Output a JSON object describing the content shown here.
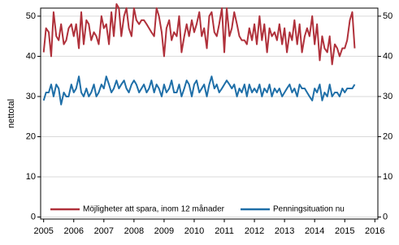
{
  "chart_data": {
    "type": "line",
    "y_label": "nettotal",
    "x": [
      2005.0,
      2005.08,
      2005.17,
      2005.25,
      2005.33,
      2005.42,
      2005.5,
      2005.58,
      2005.67,
      2005.75,
      2005.83,
      2005.92,
      2006.0,
      2006.08,
      2006.17,
      2006.25,
      2006.33,
      2006.42,
      2006.5,
      2006.58,
      2006.67,
      2006.75,
      2006.83,
      2006.92,
      2007.0,
      2007.08,
      2007.17,
      2007.25,
      2007.33,
      2007.42,
      2007.5,
      2007.58,
      2007.67,
      2007.75,
      2007.83,
      2007.92,
      2008.0,
      2008.08,
      2008.17,
      2008.25,
      2008.33,
      2008.42,
      2008.5,
      2008.58,
      2008.67,
      2008.75,
      2008.83,
      2008.92,
      2009.0,
      2009.08,
      2009.17,
      2009.25,
      2009.33,
      2009.42,
      2009.5,
      2009.58,
      2009.67,
      2009.75,
      2009.83,
      2009.92,
      2010.0,
      2010.08,
      2010.17,
      2010.25,
      2010.33,
      2010.42,
      2010.5,
      2010.58,
      2010.67,
      2010.75,
      2010.83,
      2010.92,
      2011.0,
      2011.08,
      2011.17,
      2011.25,
      2011.33,
      2011.42,
      2011.5,
      2011.58,
      2011.67,
      2011.75,
      2011.83,
      2011.92,
      2012.0,
      2012.08,
      2012.17,
      2012.25,
      2012.33,
      2012.42,
      2012.5,
      2012.58,
      2012.67,
      2012.75,
      2012.83,
      2012.92,
      2013.0,
      2013.08,
      2013.17,
      2013.25,
      2013.33,
      2013.42,
      2013.5,
      2013.58,
      2013.67,
      2013.75,
      2013.83,
      2013.92,
      2014.0,
      2014.08,
      2014.17,
      2014.25,
      2014.33,
      2014.42,
      2014.5,
      2014.58,
      2014.67,
      2014.75,
      2014.83,
      2014.92,
      2015.0,
      2015.08,
      2015.17,
      2015.25,
      2015.33
    ],
    "series": [
      {
        "name": "Möjligheter att spara, inom 12 månader",
        "color": "#b0313b",
        "values": [
          41,
          47,
          46,
          40,
          51,
          45,
          44,
          48,
          43,
          44,
          47,
          48,
          45,
          48,
          42,
          51,
          43,
          49,
          48,
          44,
          46,
          45,
          43,
          50,
          47,
          48,
          43,
          51,
          45,
          53,
          52,
          45,
          50,
          52,
          47,
          45,
          52,
          49,
          48,
          49,
          49,
          48,
          47,
          46,
          45,
          52,
          50,
          46,
          40,
          47,
          49,
          44,
          46,
          45,
          50,
          41,
          45,
          48,
          45,
          49,
          46,
          48,
          51,
          45,
          47,
          42,
          50,
          51,
          46,
          45,
          48,
          52,
          41,
          52,
          45,
          47,
          51,
          48,
          45,
          44,
          44,
          43,
          47,
          44,
          48,
          43,
          50,
          44,
          48,
          41,
          47,
          45,
          46,
          44,
          48,
          43,
          47,
          41,
          46,
          44,
          49,
          43,
          48,
          41,
          45,
          47,
          45,
          50,
          43,
          48,
          39,
          45,
          42,
          41,
          45,
          38,
          43,
          42,
          40,
          42,
          42,
          44,
          49,
          51,
          42
        ]
      },
      {
        "name": "Penningsituation nu",
        "color": "#1f6fa8",
        "values": [
          29,
          31,
          31,
          33,
          30,
          33,
          32,
          28,
          31,
          30,
          30,
          33,
          31,
          32,
          35,
          31,
          30,
          32,
          30,
          31,
          33,
          30,
          31,
          33,
          32,
          35,
          33,
          31,
          32,
          34,
          32,
          33,
          34,
          32,
          31,
          33,
          34,
          33,
          31,
          32,
          33,
          31,
          32,
          34,
          31,
          33,
          32,
          30,
          33,
          31,
          32,
          34,
          31,
          31,
          33,
          30,
          32,
          34,
          33,
          30,
          33,
          34,
          31,
          32,
          33,
          30,
          33,
          35,
          32,
          33,
          31,
          32,
          33,
          34,
          33,
          32,
          33,
          30,
          32,
          31,
          33,
          30,
          33,
          31,
          32,
          31,
          33,
          30,
          32,
          31,
          33,
          30,
          32,
          31,
          32,
          30,
          31,
          32,
          33,
          31,
          32,
          30,
          33,
          32,
          32,
          31,
          30,
          29,
          32,
          31,
          33,
          29,
          31,
          30,
          33,
          30,
          31,
          31,
          30,
          32,
          31,
          32,
          32,
          32,
          33
        ]
      }
    ],
    "xlim": [
      2004.9,
      2016.1
    ],
    "xticks": [
      2005,
      2006,
      2007,
      2008,
      2009,
      2010,
      2011,
      2012,
      2013,
      2014,
      2015,
      2016
    ],
    "ylim": [
      -0.5,
      52
    ],
    "yticks": [
      0,
      10,
      20,
      30,
      40,
      50
    ],
    "y2lim": [
      -0.5,
      52
    ],
    "y2ticks": [
      0,
      10,
      20,
      30,
      40,
      50
    ],
    "grid": true,
    "legend": "bottom"
  }
}
